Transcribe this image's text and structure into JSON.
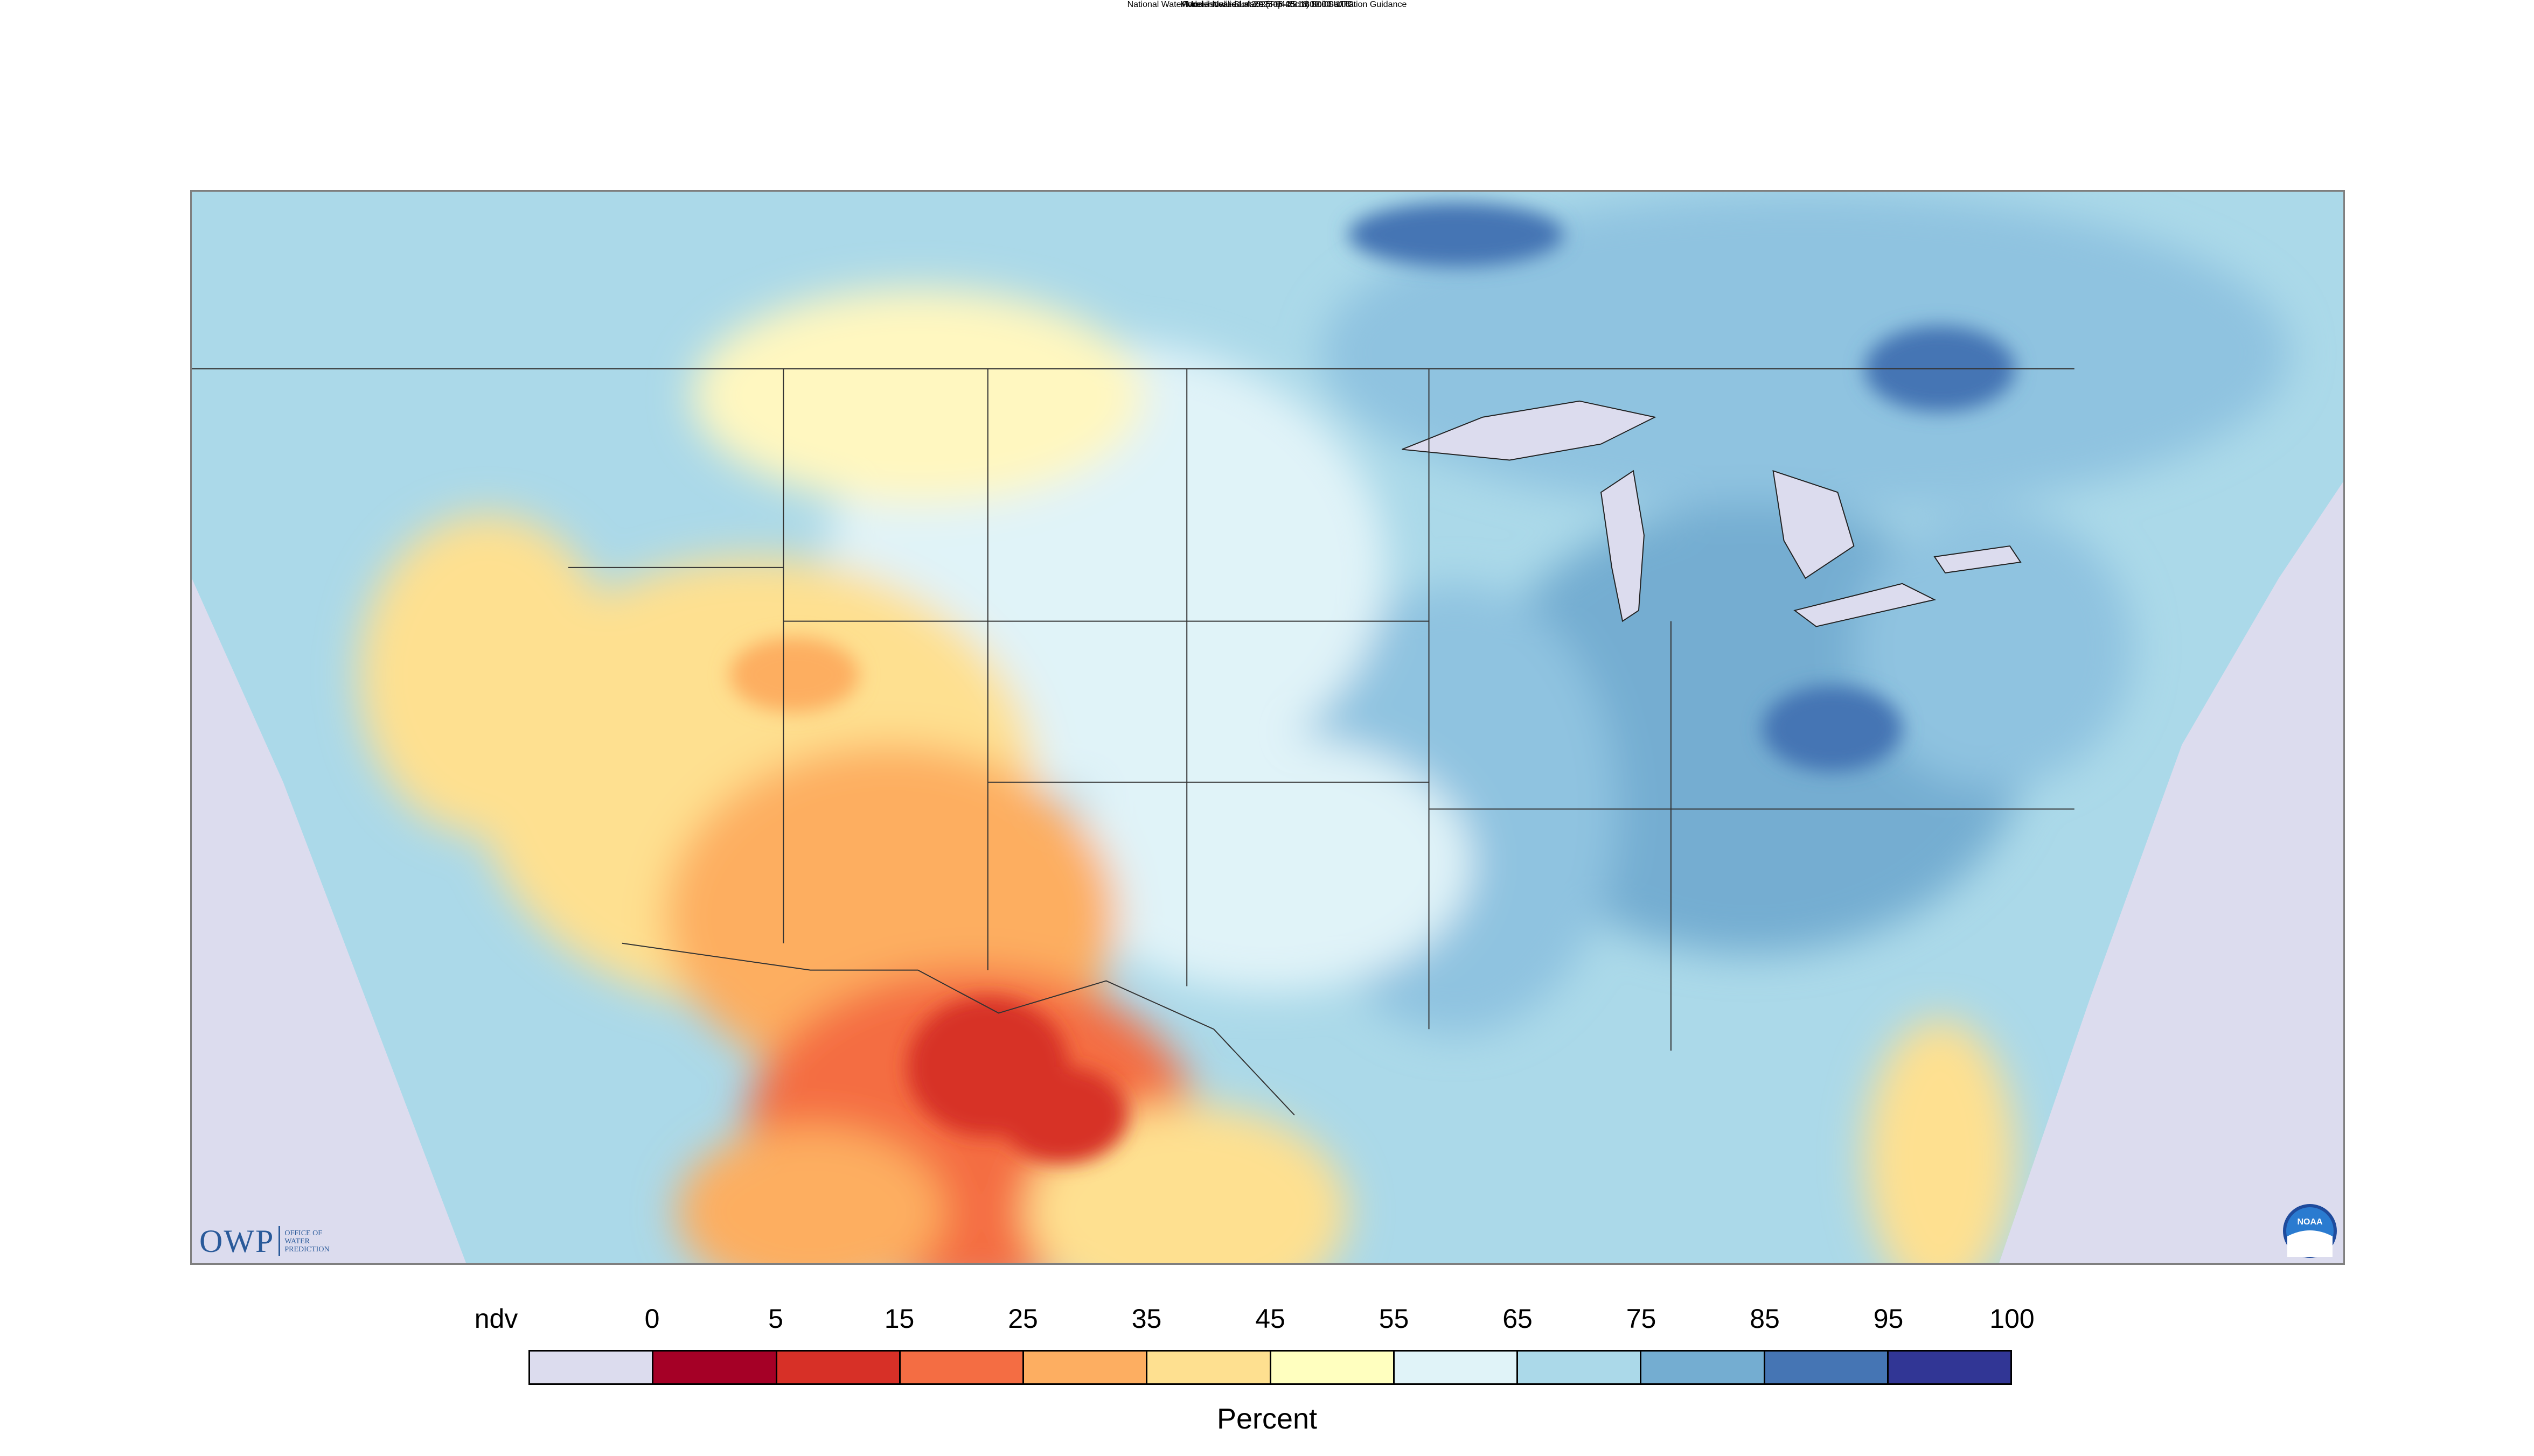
{
  "header": {
    "title": "National Water Model Near-Surface (Top 40cm) Soil Saturation Guidance",
    "forecast_line": "Forecast valid for 2025-05-25 18:00:00 UTC",
    "init_line": "Model initialized at 2025-04-29 18:00:00 UTC"
  },
  "logos": {
    "owp_main": "OWP",
    "owp_sub": "OFFICE OF\nWATER\nPREDICTION",
    "noaa": "NOAA"
  },
  "legend": {
    "unit": "Percent",
    "labels": [
      "ndv",
      "0",
      "5",
      "15",
      "25",
      "35",
      "45",
      "55",
      "65",
      "75",
      "85",
      "95",
      "100"
    ],
    "colors": [
      "#dcdcee",
      "#a50026",
      "#d73027",
      "#f46d43",
      "#fdae61",
      "#fee090",
      "#ffffbf",
      "#e0f3f8",
      "#abd9e9",
      "#74add1",
      "#4575b4",
      "#313695"
    ]
  },
  "map": {
    "no_data_color": "#dcdcee",
    "land_base_color": "#abd9e9",
    "water_color": "#dcdcee",
    "border_color": "#333333"
  }
}
